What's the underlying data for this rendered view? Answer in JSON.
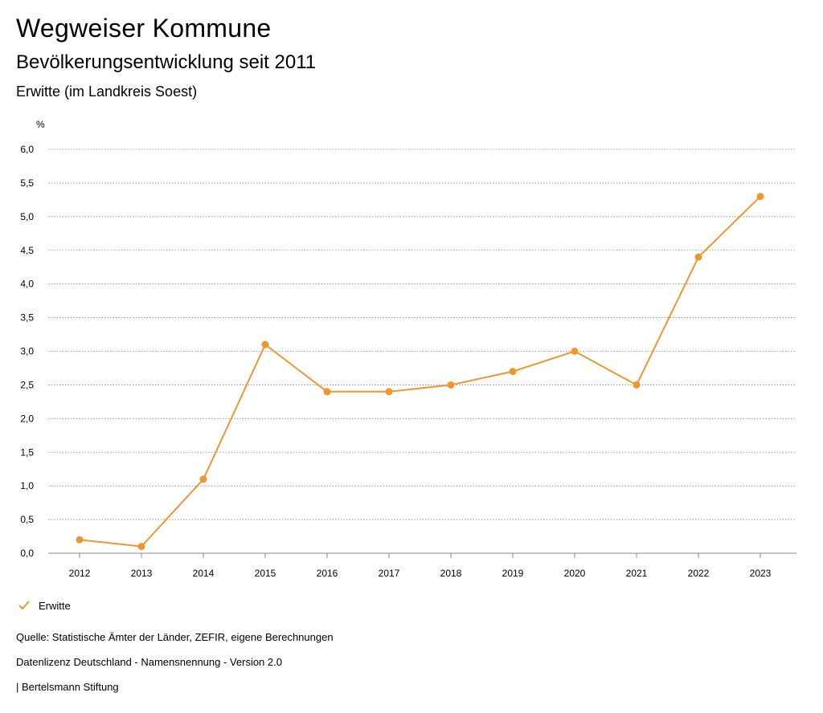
{
  "header": {
    "title": "Wegweiser Kommune",
    "subtitle": "Bevölkerungsentwicklung seit 2011",
    "location": "Erwitte (im Landkreis Soest)"
  },
  "chart_data": {
    "type": "line",
    "title": "Bevölkerungsentwicklung seit 2011",
    "ylabel": "%",
    "xlabel": "",
    "ylim": [
      0,
      6
    ],
    "yticks": [
      0,
      0.5,
      1,
      1.5,
      2,
      2.5,
      3,
      3.5,
      4,
      4.5,
      5,
      5.5,
      6
    ],
    "ytick_labels": [
      "0,0",
      "0,5",
      "1,0",
      "1,5",
      "2,0",
      "2,5",
      "3,0",
      "3,5",
      "4,0",
      "4,5",
      "5,0",
      "5,5",
      "6,0"
    ],
    "categories": [
      "2012",
      "2013",
      "2014",
      "2015",
      "2016",
      "2017",
      "2018",
      "2019",
      "2020",
      "2021",
      "2022",
      "2023"
    ],
    "series": [
      {
        "name": "Erwitte",
        "color": "#f0962f",
        "values": [
          0.2,
          0.1,
          1.1,
          3.1,
          2.4,
          2.4,
          2.5,
          2.7,
          3.0,
          2.5,
          4.4,
          5.3
        ]
      }
    ],
    "grid": true,
    "legend": "bottom-left"
  },
  "legend": {
    "items": [
      {
        "label": "Erwitte",
        "icon": "check-icon",
        "color": "#f0962f"
      }
    ]
  },
  "footer": {
    "source": "Quelle: Statistische Ämter der Länder, ZEFIR, eigene Berechnungen",
    "license": "Datenlizenz Deutschland - Namensnennung - Version 2.0",
    "publisher": "| Bertelsmann Stiftung"
  }
}
